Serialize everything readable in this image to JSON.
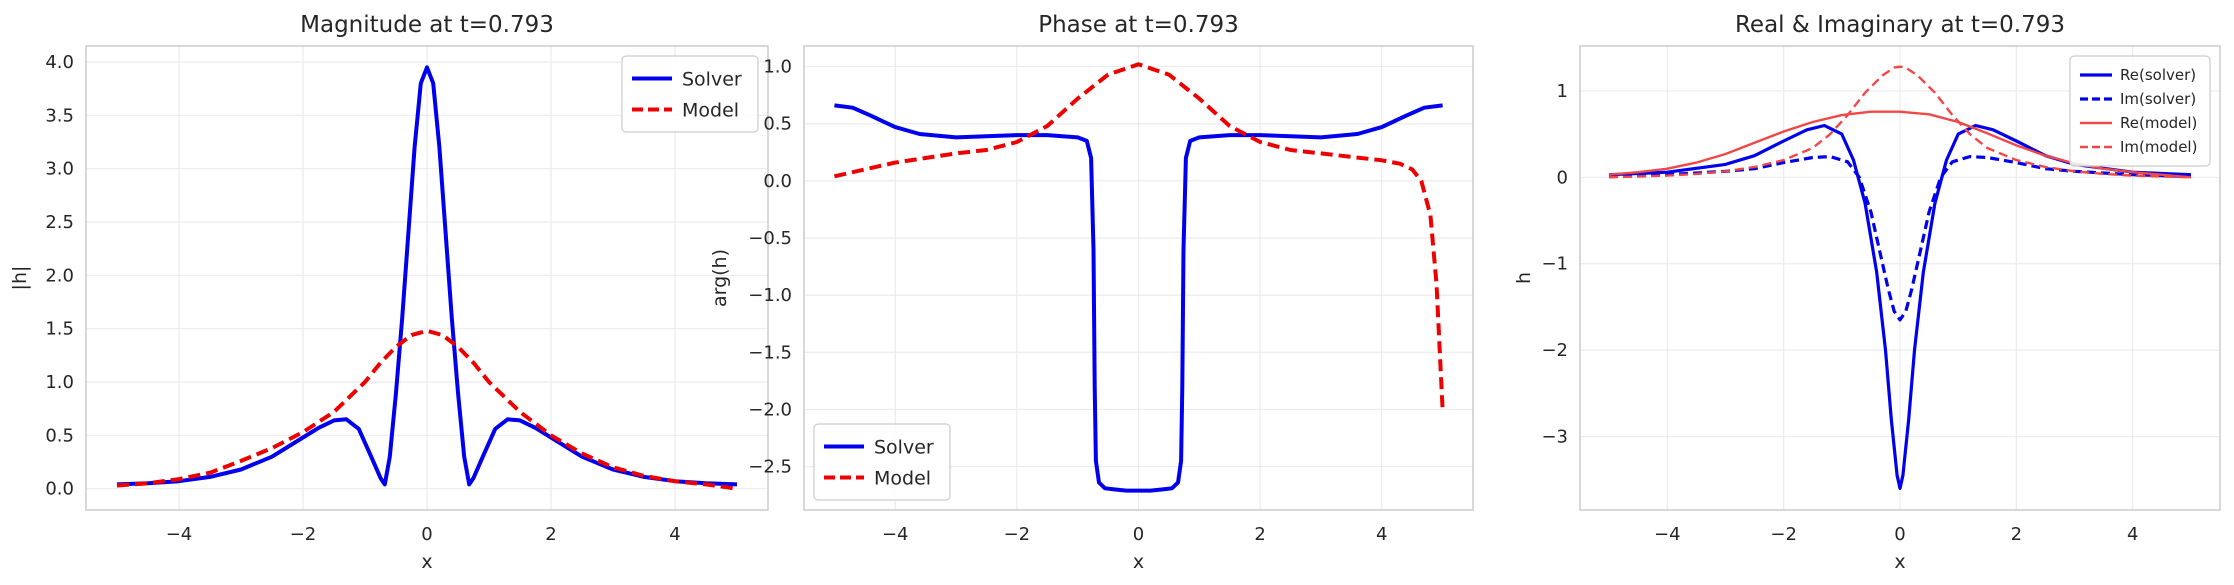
{
  "chart_data": [
    {
      "type": "line",
      "title": "Magnitude at t=0.793",
      "xlabel": "x",
      "ylabel": "|h|",
      "xlim": [
        -5.5,
        5.5
      ],
      "ylim": [
        -0.2,
        4.15
      ],
      "xticks": [
        -4,
        -2,
        0,
        2,
        4
      ],
      "xtick_labels": [
        "−4",
        "−2",
        "0",
        "2",
        "4"
      ],
      "yticks": [
        0.0,
        0.5,
        1.0,
        1.5,
        2.0,
        2.5,
        3.0,
        3.5,
        4.0
      ],
      "ytick_labels": [
        "0.0",
        "0.5",
        "1.0",
        "1.5",
        "2.0",
        "2.5",
        "3.0",
        "3.5",
        "4.0"
      ],
      "grid": true,
      "legend": "top-right",
      "series": [
        {
          "name": "Solver",
          "color": "#0000ee",
          "style": "solid",
          "x": [
            -5,
            -4.5,
            -4,
            -3.5,
            -3,
            -2.5,
            -2,
            -1.75,
            -1.5,
            -1.3,
            -1.1,
            -0.9,
            -0.75,
            -0.68,
            -0.6,
            -0.5,
            -0.4,
            -0.3,
            -0.2,
            -0.1,
            0,
            0.1,
            0.2,
            0.3,
            0.4,
            0.5,
            0.6,
            0.68,
            0.75,
            0.9,
            1.1,
            1.3,
            1.5,
            1.75,
            2,
            2.5,
            3,
            3.5,
            4,
            4.5,
            5
          ],
          "y": [
            0.04,
            0.05,
            0.07,
            0.11,
            0.18,
            0.3,
            0.48,
            0.57,
            0.64,
            0.65,
            0.56,
            0.3,
            0.1,
            0.04,
            0.3,
            0.9,
            1.6,
            2.4,
            3.2,
            3.8,
            3.95,
            3.8,
            3.2,
            2.4,
            1.6,
            0.9,
            0.3,
            0.04,
            0.1,
            0.3,
            0.56,
            0.65,
            0.64,
            0.57,
            0.48,
            0.3,
            0.18,
            0.11,
            0.07,
            0.05,
            0.04
          ]
        },
        {
          "name": "Model",
          "color": "#ee0000",
          "style": "dashed",
          "x": [
            -5,
            -4.5,
            -4,
            -3.5,
            -3,
            -2.5,
            -2,
            -1.5,
            -1,
            -0.75,
            -0.5,
            -0.25,
            0,
            0.25,
            0.5,
            0.75,
            1,
            1.5,
            2,
            2.5,
            3,
            3.5,
            4,
            4.5,
            5
          ],
          "y": [
            0.03,
            0.05,
            0.09,
            0.15,
            0.26,
            0.38,
            0.53,
            0.72,
            1.0,
            1.18,
            1.33,
            1.44,
            1.48,
            1.44,
            1.33,
            1.18,
            1.0,
            0.72,
            0.5,
            0.33,
            0.2,
            0.12,
            0.07,
            0.04,
            0.0
          ]
        }
      ]
    },
    {
      "type": "line",
      "title": "Phase at t=0.793",
      "xlabel": "x",
      "ylabel": "arg(h)",
      "xlim": [
        -5.5,
        5.5
      ],
      "ylim": [
        -2.88,
        1.18
      ],
      "xticks": [
        -4,
        -2,
        0,
        2,
        4
      ],
      "xtick_labels": [
        "−4",
        "−2",
        "0",
        "2",
        "4"
      ],
      "yticks": [
        -2.5,
        -2.0,
        -1.5,
        -1.0,
        -0.5,
        0.0,
        0.5,
        1.0
      ],
      "ytick_labels": [
        "−2.5",
        "−2.0",
        "−1.5",
        "−1.0",
        "−0.5",
        "0.0",
        "0.5",
        "1.0"
      ],
      "grid": true,
      "legend": "bottom-left",
      "series": [
        {
          "name": "Solver",
          "color": "#0000ee",
          "style": "solid",
          "x": [
            -5,
            -4.7,
            -4.4,
            -4,
            -3.6,
            -3,
            -2.5,
            -2,
            -1.5,
            -1,
            -0.85,
            -0.78,
            -0.74,
            -0.72,
            -0.7,
            -0.65,
            -0.55,
            -0.4,
            -0.2,
            0,
            0.2,
            0.4,
            0.55,
            0.65,
            0.7,
            0.72,
            0.74,
            0.78,
            0.85,
            1,
            1.5,
            2,
            2.5,
            3,
            3.6,
            4,
            4.4,
            4.7,
            5
          ],
          "y": [
            0.66,
            0.64,
            0.57,
            0.47,
            0.41,
            0.38,
            0.39,
            0.4,
            0.4,
            0.38,
            0.35,
            0.2,
            -0.6,
            -1.8,
            -2.45,
            -2.64,
            -2.69,
            -2.7,
            -2.71,
            -2.71,
            -2.71,
            -2.7,
            -2.69,
            -2.64,
            -2.45,
            -1.8,
            -0.6,
            0.2,
            0.35,
            0.38,
            0.4,
            0.4,
            0.39,
            0.38,
            0.41,
            0.47,
            0.57,
            0.64,
            0.66
          ]
        },
        {
          "name": "Model",
          "color": "#ee0000",
          "style": "dashed",
          "x": [
            -5,
            -4.5,
            -4,
            -3.5,
            -3,
            -2.5,
            -2,
            -1.5,
            -1,
            -0.5,
            0,
            0.5,
            1,
            1.5,
            2,
            2.5,
            3,
            3.5,
            4,
            4.3,
            4.5,
            4.65,
            4.8,
            4.9,
            5
          ],
          "y": [
            0.04,
            0.1,
            0.16,
            0.2,
            0.24,
            0.27,
            0.34,
            0.48,
            0.72,
            0.93,
            1.02,
            0.93,
            0.72,
            0.48,
            0.34,
            0.27,
            0.24,
            0.21,
            0.18,
            0.15,
            0.1,
            0.0,
            -0.3,
            -0.9,
            -2.0
          ]
        }
      ]
    },
    {
      "type": "line",
      "title": "Real & Imaginary at t=0.793",
      "xlabel": "x",
      "ylabel": "h",
      "xlim": [
        -5.5,
        5.5
      ],
      "ylim": [
        -3.85,
        1.52
      ],
      "xticks": [
        -4,
        -2,
        0,
        2,
        4
      ],
      "xtick_labels": [
        "−4",
        "−2",
        "0",
        "2",
        "4"
      ],
      "yticks": [
        -3,
        -2,
        -1,
        0,
        1
      ],
      "ytick_labels": [
        "−3",
        "−2",
        "−1",
        "0",
        "1"
      ],
      "grid": true,
      "legend": "top-right",
      "series": [
        {
          "name": "Re(solver)",
          "color": "#0000ee",
          "style": "solid",
          "x": [
            -5,
            -4,
            -3,
            -2.5,
            -2,
            -1.6,
            -1.3,
            -1,
            -0.8,
            -0.6,
            -0.4,
            -0.25,
            -0.15,
            -0.05,
            0,
            0.05,
            0.15,
            0.25,
            0.4,
            0.6,
            0.8,
            1,
            1.3,
            1.6,
            2,
            2.5,
            3,
            4,
            5
          ],
          "y": [
            0.03,
            0.06,
            0.15,
            0.25,
            0.42,
            0.55,
            0.6,
            0.5,
            0.2,
            -0.3,
            -1.1,
            -2.0,
            -2.8,
            -3.45,
            -3.6,
            -3.45,
            -2.8,
            -2.0,
            -1.1,
            -0.3,
            0.2,
            0.5,
            0.6,
            0.55,
            0.42,
            0.25,
            0.15,
            0.06,
            0.03
          ]
        },
        {
          "name": "Im(solver)",
          "color": "#0000ee",
          "style": "dashed",
          "x": [
            -5,
            -4,
            -3,
            -2.5,
            -2,
            -1.5,
            -1.2,
            -0.9,
            -0.7,
            -0.5,
            -0.35,
            -0.2,
            -0.1,
            0,
            0.1,
            0.2,
            0.35,
            0.5,
            0.7,
            0.9,
            1.2,
            1.5,
            2,
            2.5,
            3,
            4,
            5
          ],
          "y": [
            0.01,
            0.03,
            0.07,
            0.1,
            0.17,
            0.23,
            0.24,
            0.18,
            0.0,
            -0.4,
            -0.85,
            -1.3,
            -1.55,
            -1.65,
            -1.55,
            -1.3,
            -0.85,
            -0.4,
            0.0,
            0.18,
            0.24,
            0.23,
            0.17,
            0.1,
            0.07,
            0.03,
            0.01
          ]
        },
        {
          "name": "Re(model)",
          "color": "#f04848",
          "style": "solid",
          "x": [
            -5,
            -4.5,
            -4,
            -3.5,
            -3,
            -2.5,
            -2,
            -1.5,
            -1,
            -0.5,
            0,
            0.5,
            1,
            1.5,
            2,
            2.5,
            3,
            3.5,
            4,
            4.5,
            5
          ],
          "y": [
            0.03,
            0.06,
            0.1,
            0.17,
            0.27,
            0.4,
            0.53,
            0.64,
            0.72,
            0.76,
            0.76,
            0.73,
            0.64,
            0.51,
            0.37,
            0.25,
            0.16,
            0.1,
            0.06,
            0.03,
            0.0
          ]
        },
        {
          "name": "Im(model)",
          "color": "#f04848",
          "style": "dashed",
          "x": [
            -5,
            -4.5,
            -4,
            -3.5,
            -3,
            -2.5,
            -2,
            -1.5,
            -1.2,
            -0.9,
            -0.6,
            -0.3,
            -0.1,
            0,
            0.1,
            0.3,
            0.6,
            0.9,
            1.2,
            1.5,
            2,
            2.5,
            3,
            3.5,
            4,
            4.5,
            5
          ],
          "y": [
            0.0,
            0.01,
            0.02,
            0.04,
            0.07,
            0.12,
            0.2,
            0.34,
            0.5,
            0.72,
            0.98,
            1.18,
            1.27,
            1.28,
            1.27,
            1.18,
            0.98,
            0.72,
            0.5,
            0.34,
            0.2,
            0.12,
            0.07,
            0.04,
            0.02,
            0.01,
            0.0
          ]
        }
      ]
    }
  ]
}
